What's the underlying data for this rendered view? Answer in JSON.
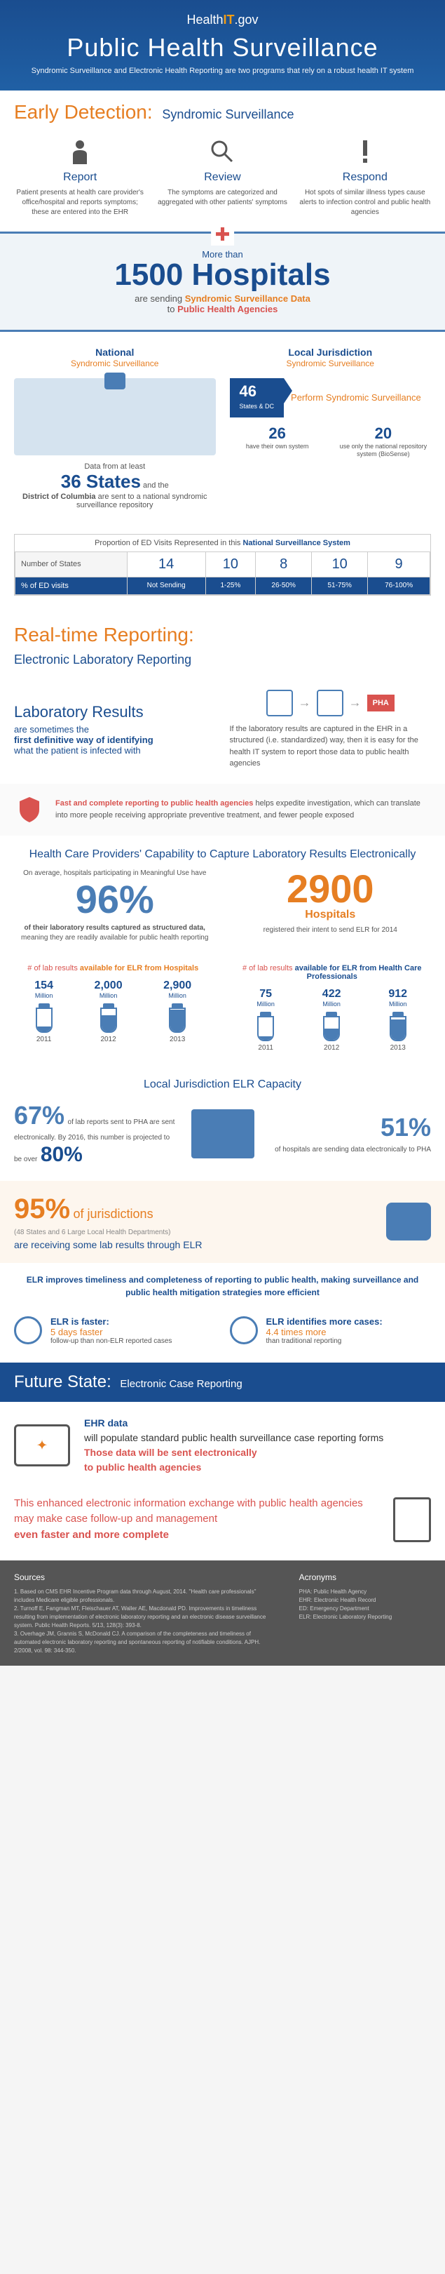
{
  "header": {
    "logo_pre": "Health",
    "logo_it": "IT",
    "logo_post": ".gov",
    "title": "Public Health Surveillance",
    "subtitle": "Syndromic Surveillance and Electronic Health Reporting are two programs that rely on a robust health IT system"
  },
  "early": {
    "title": "Early Detection:",
    "sub": "Syndromic Surveillance",
    "cols": [
      {
        "h": "Report",
        "p": "Patient presents at health care provider's office/hospital and reports symptoms; these are entered into the EHR"
      },
      {
        "h": "Review",
        "p": "The symptoms are categorized and aggregated with other patients' symptoms"
      },
      {
        "h": "Respond",
        "p": "Hot spots of similar illness types cause alerts to infection control and public health agencies"
      }
    ]
  },
  "banner": {
    "more": "More than",
    "num": "1500 Hospitals",
    "sending": "are sending",
    "ss": "Syndromic Surveillance Data",
    "to": "to",
    "pha": "Public Health Agencies"
  },
  "national": {
    "title": "National",
    "sub": "Syndromic Surveillance",
    "text_pre": "Data from at least",
    "num": "36 States",
    "text_mid": "and the",
    "dc": "District of Columbia",
    "text_post": "are sent to a national syndromic surveillance repository"
  },
  "local": {
    "title": "Local Jurisdiction",
    "sub": "Syndromic Surveillance",
    "flag_n": "46",
    "flag_t": "States & DC",
    "perform": "Perform Syndromic Surveillance",
    "stats": [
      {
        "n": "26",
        "t": "have their own system"
      },
      {
        "n": "20",
        "t": "use only the national repository system (BioSense)"
      }
    ]
  },
  "ed_table": {
    "caption_pre": "Proportion of ED Visits Represented in this",
    "caption_b": "National Surveillance System",
    "row1_label": "Number of States",
    "row1": [
      "14",
      "10",
      "8",
      "10",
      "9"
    ],
    "row2_label": "% of ED visits",
    "row2": [
      "Not Sending",
      "1-25%",
      "26-50%",
      "51-75%",
      "76-100%"
    ]
  },
  "realtime": {
    "title": "Real-time Reporting:",
    "sub": "Electronic Laboratory Reporting"
  },
  "lab": {
    "h1": "Laboratory Results",
    "p1": "are sometimes the",
    "b1": "first definitive way of identifying",
    "p2": "what the patient is infected with",
    "pha": "PHA",
    "right": "If the laboratory results are captured in the EHR in a structured (i.e. standardized) way, then it is easy for the health IT system to report those data to public health agencies"
  },
  "callout": {
    "red": "Fast and complete reporting to public health agencies",
    "rest": " helps expedite investigation, which can translate into more people receiving appropriate preventive treatment, and fewer people exposed"
  },
  "cap": {
    "title": "Health Care Providers' Capability to Capture Laboratory Results Electronically",
    "left_pre": "On average, hospitals participating in Meaningful Use have",
    "left_pct": "96%",
    "left_post1": "of their laboratory results captured as structured data,",
    "left_post2": "meaning they are readily available for public health reporting",
    "right_n": "2900",
    "right_h": "Hospitals",
    "right_post": "registered their intent to send ELR for 2014"
  },
  "vials": {
    "left_title_pre": "# of lab results",
    "left_title_post": "available for ELR from Hospitals",
    "right_title_pre": "# of lab results",
    "right_title_post": "available for ELR from Health Care Professionals",
    "left": [
      {
        "n": "154",
        "u": "Million",
        "y": "2011",
        "fill": 20
      },
      {
        "n": "2,000",
        "u": "Million",
        "y": "2012",
        "fill": 70
      },
      {
        "n": "2,900",
        "u": "Million",
        "y": "2013",
        "fill": 95
      }
    ],
    "right": [
      {
        "n": "75",
        "u": "Million",
        "y": "2011",
        "fill": 15
      },
      {
        "n": "422",
        "u": "Million",
        "y": "2012",
        "fill": 50
      },
      {
        "n": "912",
        "u": "Million",
        "y": "2013",
        "fill": 90
      }
    ]
  },
  "lj": {
    "title": "Local Jurisdiction ELR Capacity",
    "l_pct": "67%",
    "l_txt": "of lab reports sent to PHA are sent electronically. By 2016, this number is projected to be over",
    "l_big": "80%",
    "r_pct": "51%",
    "r_txt": "of hospitals are sending data electronically to PHA"
  },
  "juris": {
    "pct": "95%",
    "of": "of jurisdictions",
    "sub": "(48 States and 6 Large Local Health Departments)",
    "line2": "are receiving some lab results through ELR"
  },
  "improve": "ELR improves timeliness and completeness of reporting to public health, making surveillance and public health mitigation strategies more efficient",
  "compare": [
    {
      "t1": "ELR is faster:",
      "t2": "5 days faster",
      "t3": "follow-up than non-ELR reported cases"
    },
    {
      "t1": "ELR identifies more cases:",
      "t2": "4.4 times more",
      "t3": "than traditional reporting"
    }
  ],
  "future": {
    "title": "Future State:",
    "sub": "Electronic Case Reporting",
    "p1_a": "EHR data",
    "p1_b": "will populate standard public health surveillance case reporting forms",
    "p1_c": "Those data will be sent electronically",
    "p1_d": "to public health agencies",
    "p2_a": "This enhanced electronic information exchange with public health agencies may make case follow-up and management",
    "p2_b": "even faster and more complete"
  },
  "sources": {
    "h1": "Sources",
    "items": [
      "1. Based on CMS EHR Incentive Program data through August, 2014. \"Health care professionals\" includes Medicare eligible professionals.",
      "2. Turnoff E, Fangman MT, Fleischauer AT, Waller AE, Macdonald PD. Improvements in timeliness resulting from implementation of electronic laboratory reporting and an electronic disease surveillance system. Public Health Reports. 5/13, 128(3): 393-8.",
      "3. Overhage JM, Grannis S, McDonald CJ. A comparison of the completeness and timeliness of automated electronic laboratory reporting and spontaneous reporting of notifiable conditions. AJPH. 2/2008, vol. 98: 344-350."
    ],
    "h2": "Acronyms",
    "acros": [
      "PHA: Public Health Agency",
      "EHR: Electronic Health Record",
      "ED: Emergency Department",
      "ELR: Electronic Laboratory Reporting"
    ]
  }
}
